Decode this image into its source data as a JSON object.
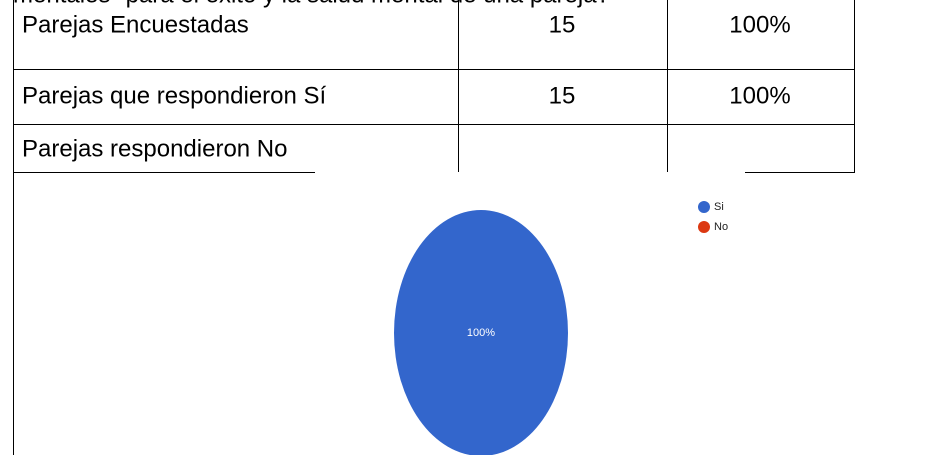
{
  "heading": "mentales\" para el éxito y la salud mental de una pareja?",
  "table": {
    "rows": [
      [
        "Parejas Encuestadas",
        15,
        "100%"
      ],
      [
        "Parejas que respondieron Sí",
        15,
        "100%"
      ],
      [
        "Parejas respondieron No"
      ]
    ]
  },
  "chart_data": {
    "type": "pie",
    "categories": [
      "Si",
      "No"
    ],
    "values": [
      100,
      0
    ],
    "value_labels": [
      "100%",
      null
    ],
    "colors": [
      "#3366cc",
      "#dc3912"
    ],
    "legend": "right"
  }
}
